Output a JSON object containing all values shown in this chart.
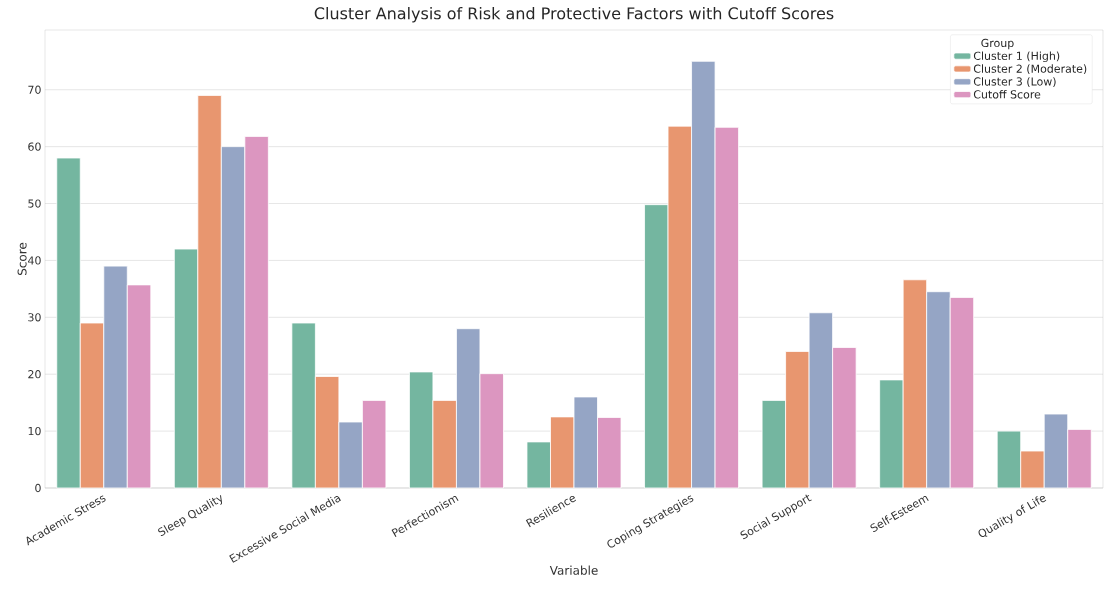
{
  "chart_data": {
    "type": "bar",
    "title": "Cluster Analysis of Risk and Protective Factors with Cutoff Scores",
    "xlabel": "Variable",
    "ylabel": "Score",
    "legend_title": "Group",
    "categories": [
      "Academic Stress",
      "Sleep Quality",
      "Excessive Social Media",
      "Perfectionism",
      "Resilience",
      "Coping Strategies",
      "Social Support",
      "Self-Esteem",
      "Quality of Life"
    ],
    "series": [
      {
        "name": "Cluster 1 (High)",
        "color": "#74b6a0",
        "values": [
          58,
          42,
          29,
          20.4,
          8.1,
          49.8,
          15.4,
          19,
          10
        ]
      },
      {
        "name": "Cluster 2 (Moderate)",
        "color": "#e8966f",
        "values": [
          29,
          69,
          19.6,
          15.4,
          12.5,
          63.6,
          24,
          36.6,
          6.5
        ]
      },
      {
        "name": "Cluster 3 (Low)",
        "color": "#95a5c5",
        "values": [
          39,
          60,
          11.6,
          28,
          16,
          75,
          30.8,
          34.5,
          13
        ]
      },
      {
        "name": "Cutoff Score",
        "color": "#dc96c0",
        "values": [
          35.7,
          61.8,
          15.4,
          20.1,
          12.4,
          63.4,
          24.7,
          33.5,
          10.3
        ]
      }
    ],
    "ylim": [
      0,
      80.5
    ],
    "yticks": [
      0,
      10,
      20,
      30,
      40,
      50,
      60,
      70
    ],
    "grid": "y",
    "legend": "top right"
  }
}
